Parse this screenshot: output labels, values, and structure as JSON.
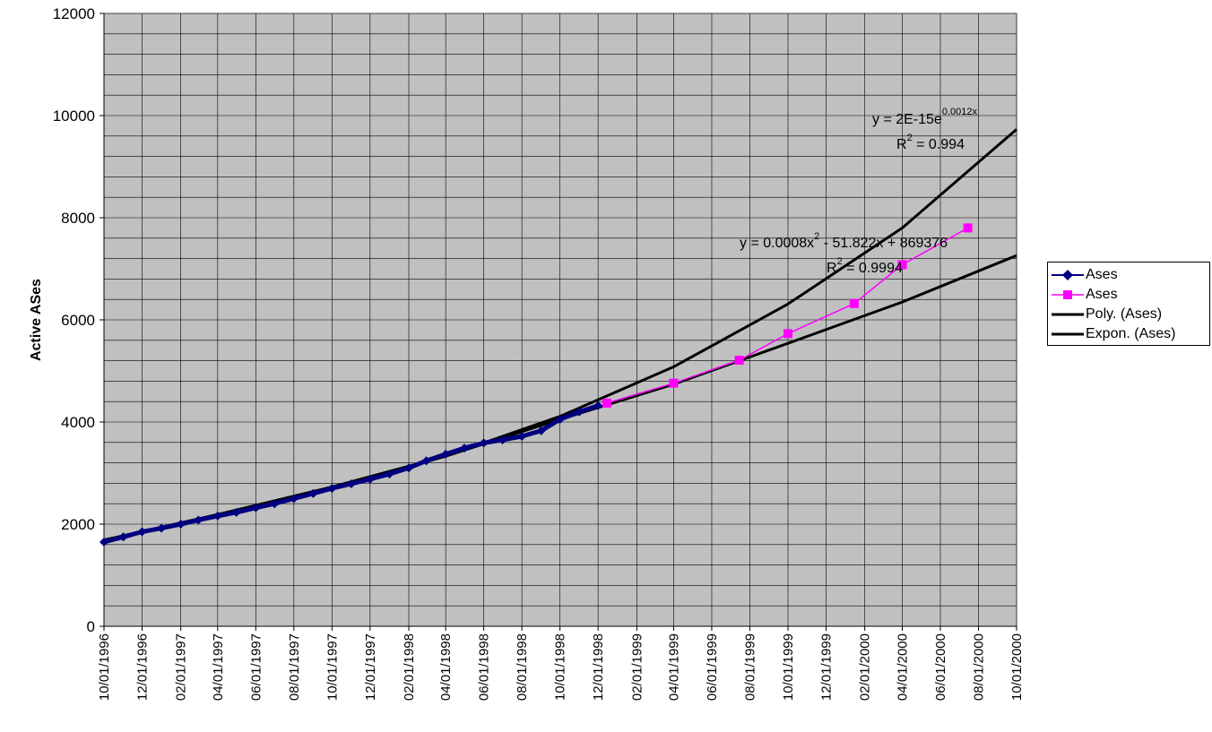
{
  "chart_data": {
    "type": "line",
    "title": "",
    "xlabel": "",
    "ylabel": "Active ASes",
    "x_axis_type": "date",
    "x_range": [
      "10/01/1996",
      "10/01/2000"
    ],
    "ylim": [
      0,
      12000
    ],
    "grid": true,
    "plot_background": "#c0c0c0",
    "y_ticks": [
      "0",
      "2000",
      "4000",
      "6000",
      "8000",
      "10000",
      "12000"
    ],
    "x_ticks": [
      "10/01/1996",
      "12/01/1996",
      "02/01/1997",
      "04/01/1997",
      "06/01/1997",
      "08/01/1997",
      "10/01/1997",
      "12/01/1997",
      "02/01/1998",
      "04/01/1998",
      "06/01/1998",
      "08/01/1998",
      "10/01/1998",
      "12/01/1998",
      "02/01/1999",
      "04/01/1999",
      "06/01/1999",
      "08/01/1999",
      "10/01/1999",
      "12/01/1999",
      "02/01/2000",
      "04/01/2000",
      "06/01/2000",
      "08/01/2000",
      "10/01/2000"
    ],
    "series": [
      {
        "name": "Ases",
        "color": "#000080",
        "marker": "diamond",
        "x": [
          "10/01/1996",
          "11/01/1996",
          "12/01/1996",
          "01/01/1997",
          "02/01/1997",
          "03/01/1997",
          "04/01/1997",
          "05/01/1997",
          "06/01/1997",
          "07/01/1997",
          "08/01/1997",
          "09/01/1997",
          "10/01/1997",
          "11/01/1997",
          "12/01/1997",
          "01/01/1998",
          "02/01/1998",
          "03/01/1998",
          "04/01/1998",
          "05/01/1998",
          "06/01/1998",
          "07/01/1998",
          "08/01/1998",
          "09/01/1998",
          "10/01/1998",
          "11/01/1998",
          "12/01/1998"
        ],
        "y": [
          1650,
          1750,
          1850,
          1920,
          2000,
          2080,
          2160,
          2230,
          2320,
          2400,
          2500,
          2600,
          2700,
          2790,
          2880,
          2980,
          3100,
          3240,
          3370,
          3490,
          3590,
          3650,
          3720,
          3830,
          4050,
          4200,
          4320
        ]
      },
      {
        "name": "Ases",
        "color": "#ff00ff",
        "marker": "square",
        "x": [
          "12/15/1998",
          "04/01/1999",
          "07/15/1999",
          "10/01/1999",
          "01/15/2000",
          "04/01/2000",
          "07/15/2000"
        ],
        "y": [
          4370,
          4760,
          5210,
          5730,
          6320,
          7080,
          7800
        ]
      },
      {
        "name": "Poly. (Ases)",
        "color": "#000000",
        "trendline": "polynomial",
        "equation": "y = 0.0008x",
        "equation_superscript": "2",
        "equation_rest": " - 51.822x + 869376",
        "r2_label": "R",
        "r2_superscript": "2",
        "r2_value": " = 0.9994",
        "x": [
          "10/01/1996",
          "04/01/1997",
          "10/01/1997",
          "04/01/1998",
          "10/01/1998",
          "04/01/1999",
          "10/01/1999",
          "04/01/2000",
          "10/01/2000"
        ],
        "y": [
          1690,
          2190,
          2730,
          3330,
          4050,
          4740,
          5540,
          6350,
          7260
        ]
      },
      {
        "name": "Expon. (Ases)",
        "color": "#000000",
        "trendline": "exponential",
        "equation": "y = 2E-15e",
        "equation_superscript": "0.0012x",
        "r2_label": "R",
        "r2_superscript": "2",
        "r2_value": " = 0.994",
        "x": [
          "10/01/1996",
          "04/01/1997",
          "10/01/1997",
          "04/01/1998",
          "10/01/1998",
          "04/01/1999",
          "10/01/1999",
          "04/01/2000",
          "10/01/2000"
        ],
        "y": [
          1690,
          2150,
          2700,
          3330,
          4110,
          5080,
          6310,
          7800,
          9730
        ]
      }
    ]
  }
}
